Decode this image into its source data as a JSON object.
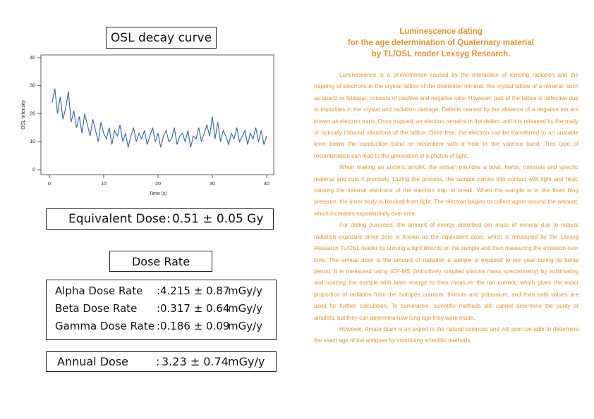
{
  "chart_data": {
    "type": "line",
    "title": "OSL decay curve",
    "x_label": "Time (s)",
    "y_label": "OSL Intensity",
    "x": [
      0.5,
      1,
      1.5,
      2,
      2.5,
      3,
      3.5,
      4,
      4.5,
      5,
      5.5,
      6,
      6.5,
      7,
      7.5,
      8,
      8.5,
      9,
      9.5,
      10,
      10.5,
      11,
      11.5,
      12,
      12.5,
      13,
      13.5,
      14,
      14.5,
      15,
      15.5,
      16,
      16.5,
      17,
      17.5,
      18,
      18.5,
      19,
      19.5,
      20,
      20.5,
      21,
      21.5,
      22,
      22.5,
      23,
      23.5,
      24,
      24.5,
      25,
      25.5,
      26,
      26.5,
      27,
      27.5,
      28,
      28.5,
      29,
      29.5,
      30,
      30.5,
      31,
      31.5,
      32,
      32.5,
      33,
      33.5,
      34,
      34.5,
      35,
      35.5,
      36,
      36.5,
      37,
      37.5,
      38,
      38.5,
      39,
      39.5,
      40
    ],
    "series": [
      {
        "color": "#2a62b0",
        "values": [
          24,
          29,
          20,
          26,
          18,
          22,
          28,
          17,
          21,
          15,
          19,
          13,
          20,
          16,
          12,
          18,
          14,
          10,
          17,
          13,
          11,
          15,
          9,
          14,
          12,
          16,
          10,
          13,
          8,
          12,
          15,
          10,
          13,
          11,
          14,
          9,
          12,
          15,
          10,
          13,
          8,
          12,
          14,
          10,
          11,
          15,
          9,
          12,
          13,
          10,
          14,
          8,
          12,
          11,
          15,
          10,
          13,
          16,
          12,
          19,
          11,
          17,
          10,
          14,
          12,
          9,
          13,
          11,
          15,
          10,
          12,
          14,
          9,
          13,
          11,
          15,
          10,
          14,
          9,
          12
        ]
      }
    ],
    "xlim": [
      0,
      40
    ],
    "xticks": [
      0,
      10,
      20,
      30,
      40
    ],
    "ylim": [
      0,
      40
    ],
    "yticks": [
      0,
      10,
      20,
      30,
      40
    ]
  },
  "equivalent_dose": {
    "label": "Equivalent Dose",
    "sep": ":",
    "value": "0.51 ± 0.05 Gy"
  },
  "dose_rate": {
    "title": "Dose Rate",
    "rows": [
      {
        "label": "Alpha Dose Rate",
        "sep": ":",
        "value": "4.215 ± 0.87",
        "unit": "mGy/y"
      },
      {
        "label": "Beta Dose Rate",
        "sep": ":",
        "value": "0.317 ± 0.64",
        "unit": "mGy/y"
      },
      {
        "label": "Gamma Dose Rate",
        "sep": ":",
        "value": "0.186 ± 0.09",
        "unit": "mGy/y"
      }
    ]
  },
  "annual_dose": {
    "label": "Annual Dose",
    "sep": ":",
    "value": "3.23 ± 0.74",
    "unit": "mGy/y"
  },
  "article": {
    "title": [
      "Luminescence dating",
      "for the age determination of Quaternary material",
      "by TL/OSL reader Lexsyg Research."
    ],
    "paragraphs": [
      "Luminescence is a phenomenon caused by the interaction of ionising radiation and the trapping of electrons in the crystal lattice of the dosimeter mineral. the crystal lattice of a mineral, such as quartz or feldspar, consists of positive and negative ions. However, part of the lattice is defective due to impurities in the crystal and radiation damage. Defects caused by the absence of a negative ion are known as electron traps. Once trapped, an electron remains in the defect until it is released by thermally or optically induced vibrations of the lattice. Once free, the electron can be transferred to an unstable level below the conduction band or recombine with a hole in the valence band. This type of recombination can lead to the generation of a photon of light.",
      "When making an ancient amulet, the artisan provides a bowl, herbs, minerals and specific material and cuts it precisely. During the process, the sample comes into contact with light and heat, causing the internal electrons of the electron trap to break. When the sample is in the fixed blog pressure, the inner body is blocked from light. The electron begins to collect again around the amount, which increases exponentially over time.",
      "For dating purposes, the amount of energy absorbed per mass of mineral due to natural radiation exposure since zero is known as the equivalent dose, which is measured by the Lexsyg Research TL/OSL reader by shining a light directly on the sample and then measuring the emission over time. The annual dose is the amount of radiation a sample is exposed to per year during its burial period. It is measured using ICP-MS (inductively coupled plasma mass spectrometry) by sublimating and ionizing the sample with laser energy to then measure the ion current, which gives the exact proportion of radiation from the isotopes uranium, thorium and potassium, and then both values are used for further calculation. To summarise, scientific methods still cannot determine the purity of amulets, but they can determine how long ago they were made.",
      "However, Amata Siam is an expert in the natural sciences and will soon be able to determine the exact age of the antiques by combining scientific methods."
    ]
  }
}
